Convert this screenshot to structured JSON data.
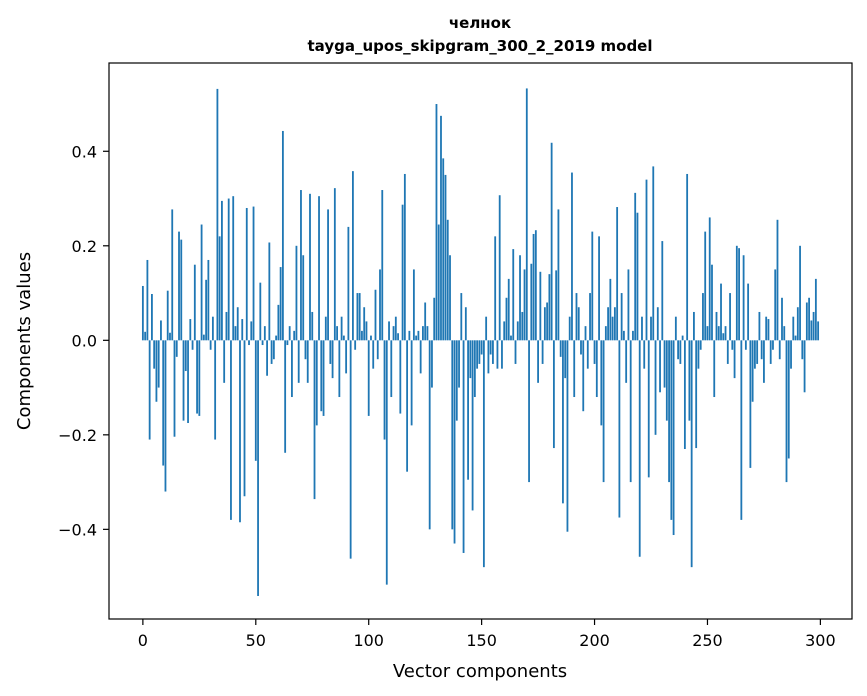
{
  "chart_data": {
    "type": "bar",
    "title": "челнок",
    "subtitle": "tayga_upos_skipgram_300_2_2019 model",
    "xlabel": "Vector components",
    "ylabel": "Components values",
    "xlim": [
      -15,
      314
    ],
    "ylim": [
      -0.5897,
      0.5868
    ],
    "x_ticks": [
      {
        "value": 0,
        "label": "0"
      },
      {
        "value": 50,
        "label": "50"
      },
      {
        "value": 100,
        "label": "100"
      },
      {
        "value": 150,
        "label": "150"
      },
      {
        "value": 200,
        "label": "200"
      },
      {
        "value": 250,
        "label": "250"
      },
      {
        "value": 300,
        "label": "300"
      }
    ],
    "y_ticks": [
      {
        "value": -0.4,
        "label": "−0.4"
      },
      {
        "value": -0.2,
        "label": "−0.2"
      },
      {
        "value": 0.0,
        "label": "0.0"
      },
      {
        "value": 0.2,
        "label": "0.2"
      },
      {
        "value": 0.4,
        "label": "0.4"
      }
    ],
    "bar_color": "#1f77b4",
    "bar_width": 0.8,
    "series": [
      {
        "name": "челнок",
        "values": [
          0.115,
          0.018,
          0.17,
          -0.21,
          0.098,
          -0.06,
          -0.13,
          -0.1,
          0.042,
          -0.265,
          -0.32,
          0.105,
          0.016,
          0.277,
          -0.204,
          -0.035,
          0.23,
          0.213,
          -0.17,
          -0.065,
          -0.175,
          0.045,
          -0.02,
          0.16,
          -0.155,
          -0.16,
          0.245,
          0.012,
          0.128,
          0.17,
          -0.02,
          0.05,
          -0.21,
          0.532,
          0.22,
          0.295,
          -0.09,
          0.06,
          0.3,
          -0.38,
          0.305,
          0.03,
          0.07,
          -0.385,
          0.045,
          -0.33,
          0.28,
          -0.01,
          0.04,
          0.283,
          -0.255,
          -0.541,
          0.122,
          -0.01,
          0.03,
          -0.075,
          0.207,
          -0.05,
          -0.04,
          0.01,
          0.075,
          0.155,
          0.443,
          -0.238,
          -0.01,
          0.03,
          -0.12,
          0.02,
          0.2,
          -0.09,
          0.318,
          0.18,
          -0.04,
          -0.09,
          0.31,
          0.06,
          -0.336,
          -0.18,
          0.305,
          -0.15,
          -0.16,
          0.05,
          0.277,
          -0.05,
          -0.08,
          0.322,
          0.03,
          -0.12,
          0.05,
          0.01,
          -0.07,
          0.24,
          -0.462,
          0.358,
          -0.02,
          0.1,
          0.1,
          0.02,
          0.07,
          0.04,
          -0.16,
          0.01,
          -0.06,
          0.107,
          -0.04,
          0.15,
          0.318,
          -0.21,
          -0.517,
          0.04,
          -0.12,
          0.03,
          0.05,
          0.015,
          -0.155,
          0.287,
          0.352,
          -0.278,
          0.02,
          -0.18,
          0.15,
          0.01,
          0.02,
          -0.07,
          0.03,
          0.08,
          0.03,
          -0.4,
          -0.1,
          0.09,
          0.5,
          0.245,
          0.475,
          0.385,
          0.35,
          0.255,
          0.18,
          -0.4,
          -0.43,
          -0.17,
          -0.1,
          0.1,
          -0.45,
          0.07,
          -0.295,
          -0.08,
          -0.36,
          -0.12,
          -0.06,
          -0.05,
          -0.03,
          -0.48,
          0.05,
          -0.07,
          -0.03,
          -0.05,
          0.22,
          -0.06,
          0.307,
          -0.06,
          0.04,
          0.09,
          0.13,
          0.01,
          0.193,
          -0.05,
          0.04,
          0.18,
          0.06,
          0.15,
          0.533,
          -0.3,
          0.162,
          0.225,
          0.233,
          -0.09,
          0.145,
          -0.05,
          0.07,
          0.08,
          0.14,
          0.418,
          -0.228,
          0.148,
          0.277,
          -0.035,
          -0.345,
          -0.08,
          -0.405,
          0.05,
          0.355,
          -0.12,
          0.1,
          0.07,
          -0.03,
          -0.15,
          0.03,
          -0.06,
          0.1,
          0.23,
          -0.05,
          -0.12,
          0.22,
          -0.18,
          -0.3,
          0.03,
          0.07,
          0.13,
          0.05,
          0.07,
          0.282,
          -0.375,
          0.1,
          0.02,
          -0.09,
          0.15,
          -0.3,
          0.02,
          0.312,
          0.27,
          -0.458,
          0.05,
          -0.06,
          0.34,
          -0.29,
          0.05,
          0.368,
          -0.2,
          0.07,
          -0.11,
          0.21,
          -0.1,
          -0.17,
          -0.3,
          -0.38,
          -0.412,
          0.05,
          -0.04,
          -0.05,
          0.01,
          -0.23,
          0.352,
          -0.17,
          -0.48,
          0.06,
          -0.228,
          -0.06,
          -0.02,
          0.1,
          0.23,
          0.03,
          0.26,
          0.16,
          -0.12,
          0.06,
          0.03,
          0.12,
          0.015,
          0.03,
          -0.05,
          0.1,
          -0.02,
          -0.08,
          0.2,
          0.195,
          -0.38,
          0.18,
          -0.02,
          0.12,
          -0.27,
          -0.13,
          -0.06,
          -0.05,
          0.06,
          -0.04,
          -0.09,
          0.05,
          0.045,
          -0.05,
          -0.02,
          0.15,
          0.255,
          -0.04,
          0.09,
          0.03,
          -0.3,
          -0.25,
          -0.06,
          0.05,
          0.01,
          0.07,
          0.2,
          -0.04,
          -0.11,
          0.08,
          0.09,
          0.042,
          0.06,
          0.13,
          0.04
        ]
      }
    ]
  }
}
